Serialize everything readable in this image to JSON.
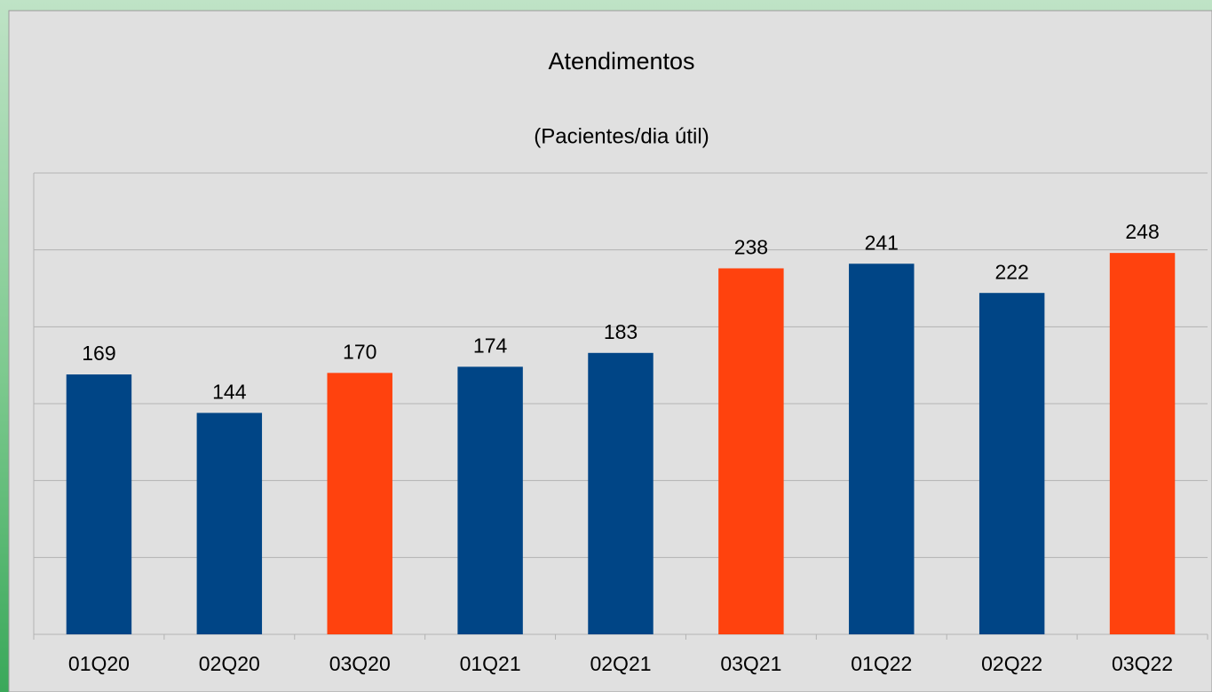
{
  "chart_data": {
    "type": "bar",
    "title": "Atendimentos",
    "subtitle": "(Pacientes/dia útil)",
    "categories": [
      "01Q20",
      "02Q20",
      "03Q20",
      "01Q21",
      "02Q21",
      "03Q21",
      "01Q22",
      "02Q22",
      "03Q22"
    ],
    "values": [
      169,
      144,
      170,
      174,
      183,
      238,
      241,
      222,
      248
    ],
    "colors": [
      "#004586",
      "#004586",
      "#ff420e",
      "#004586",
      "#004586",
      "#ff420e",
      "#004586",
      "#004586",
      "#ff420e"
    ],
    "ylim": [
      0,
      300
    ],
    "yticks": [
      0,
      50,
      100,
      150,
      200,
      250,
      300
    ],
    "grid": true
  }
}
